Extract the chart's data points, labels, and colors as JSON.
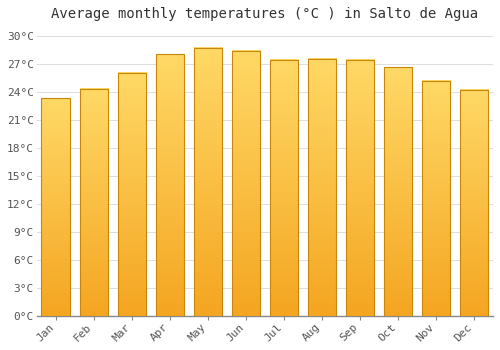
{
  "months": [
    "Jan",
    "Feb",
    "Mar",
    "Apr",
    "May",
    "Jun",
    "Jul",
    "Aug",
    "Sep",
    "Oct",
    "Nov",
    "Dec"
  ],
  "temperatures": [
    23.3,
    24.3,
    26.0,
    28.0,
    28.7,
    28.4,
    27.4,
    27.5,
    27.4,
    26.6,
    25.2,
    24.2
  ],
  "bar_color_top": "#F5A623",
  "bar_color_bottom": "#FFD966",
  "bar_edge_color": "#C8860A",
  "title": "Average monthly temperatures (°C ) in Salto de Agua",
  "ylabel_ticks": [
    0,
    3,
    6,
    9,
    12,
    15,
    18,
    21,
    24,
    27,
    30
  ],
  "ylim": [
    0,
    31
  ],
  "background_color": "#FFFFFF",
  "grid_color": "#DDDDDD",
  "title_fontsize": 10,
  "tick_fontsize": 8,
  "font_family": "monospace"
}
